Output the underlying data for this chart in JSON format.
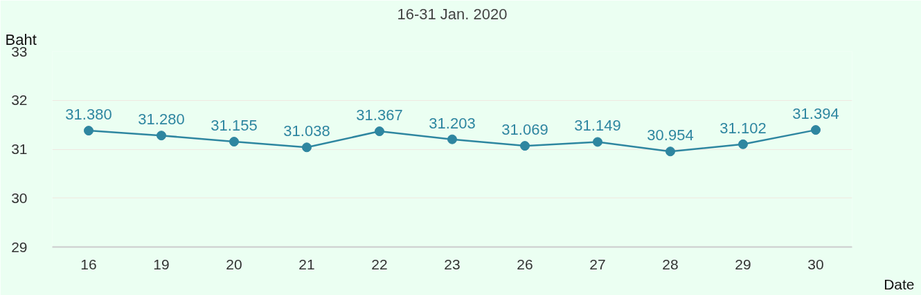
{
  "chart_data": {
    "type": "line",
    "title": "16-31 Jan. 2020",
    "ylabel": "Baht",
    "xlabel": "Date",
    "categories": [
      "16",
      "19",
      "20",
      "21",
      "22",
      "23",
      "26",
      "27",
      "28",
      "29",
      "30"
    ],
    "series": [
      {
        "color": "#2e86a0",
        "values": [
          31.38,
          31.28,
          31.155,
          31.038,
          31.367,
          31.203,
          31.069,
          31.149,
          30.954,
          31.102,
          31.394
        ],
        "value_labels": [
          "31.380",
          "31.280",
          "31.155",
          "31.038",
          "31.367",
          "31.203",
          "31.069",
          "31.149",
          "30.954",
          "31.102",
          "31.394"
        ]
      }
    ],
    "ylim": [
      29,
      33
    ],
    "yticks": [
      29,
      30,
      31,
      32,
      33
    ],
    "grid": "y",
    "marker": "circle"
  }
}
